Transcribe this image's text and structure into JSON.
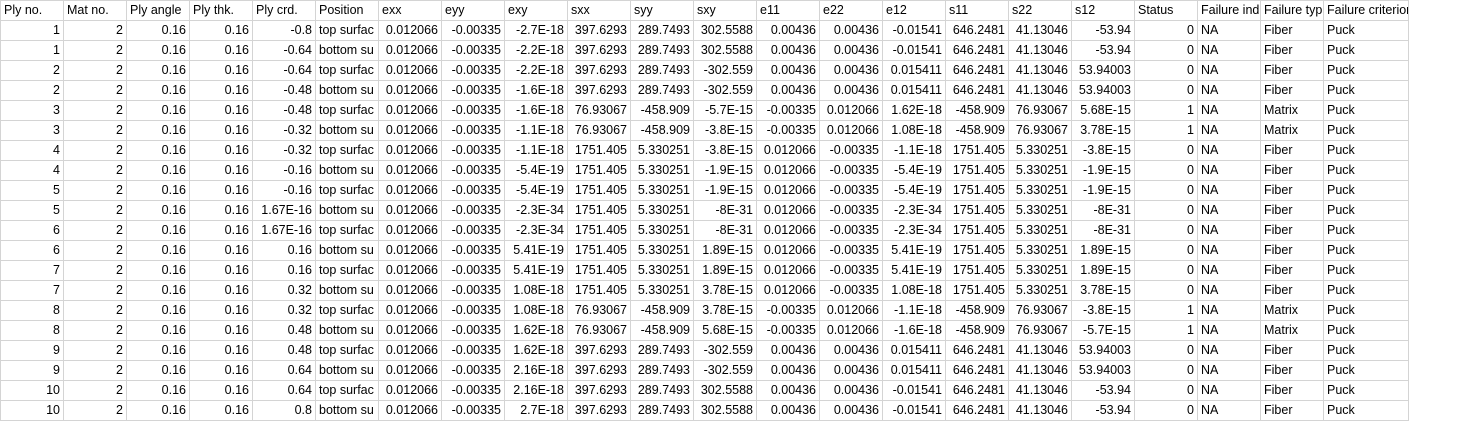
{
  "columns": [
    "Ply no.",
    "Mat no.",
    "Ply angle",
    "Ply thk.",
    "Ply crd.",
    "Position",
    "exx",
    "eyy",
    "exy",
    "sxx",
    "syy",
    "sxy",
    "e11",
    "e22",
    "e12",
    "s11",
    "s22",
    "s12",
    "Status",
    "Failure ind",
    "Failure typ",
    "Failure criterion"
  ],
  "rows": [
    [
      "1",
      "2",
      "0.16",
      "0.16",
      "-0.8",
      "top surfac",
      "0.012066",
      "-0.00335",
      "-2.7E-18",
      "397.6293",
      "289.7493",
      "302.5588",
      "0.00436",
      "0.00436",
      "-0.01541",
      "646.2481",
      "41.13046",
      "-53.94",
      "0",
      "NA",
      "Fiber",
      "Puck"
    ],
    [
      "1",
      "2",
      "0.16",
      "0.16",
      "-0.64",
      "bottom su",
      "0.012066",
      "-0.00335",
      "-2.2E-18",
      "397.6293",
      "289.7493",
      "302.5588",
      "0.00436",
      "0.00436",
      "-0.01541",
      "646.2481",
      "41.13046",
      "-53.94",
      "0",
      "NA",
      "Fiber",
      "Puck"
    ],
    [
      "2",
      "2",
      "0.16",
      "0.16",
      "-0.64",
      "top surfac",
      "0.012066",
      "-0.00335",
      "-2.2E-18",
      "397.6293",
      "289.7493",
      "-302.559",
      "0.00436",
      "0.00436",
      "0.015411",
      "646.2481",
      "41.13046",
      "53.94003",
      "0",
      "NA",
      "Fiber",
      "Puck"
    ],
    [
      "2",
      "2",
      "0.16",
      "0.16",
      "-0.48",
      "bottom su",
      "0.012066",
      "-0.00335",
      "-1.6E-18",
      "397.6293",
      "289.7493",
      "-302.559",
      "0.00436",
      "0.00436",
      "0.015411",
      "646.2481",
      "41.13046",
      "53.94003",
      "0",
      "NA",
      "Fiber",
      "Puck"
    ],
    [
      "3",
      "2",
      "0.16",
      "0.16",
      "-0.48",
      "top surfac",
      "0.012066",
      "-0.00335",
      "-1.6E-18",
      "76.93067",
      "-458.909",
      "-5.7E-15",
      "-0.00335",
      "0.012066",
      "1.62E-18",
      "-458.909",
      "76.93067",
      "5.68E-15",
      "1",
      "NA",
      "Matrix",
      "Puck"
    ],
    [
      "3",
      "2",
      "0.16",
      "0.16",
      "-0.32",
      "bottom su",
      "0.012066",
      "-0.00335",
      "-1.1E-18",
      "76.93067",
      "-458.909",
      "-3.8E-15",
      "-0.00335",
      "0.012066",
      "1.08E-18",
      "-458.909",
      "76.93067",
      "3.78E-15",
      "1",
      "NA",
      "Matrix",
      "Puck"
    ],
    [
      "4",
      "2",
      "0.16",
      "0.16",
      "-0.32",
      "top surfac",
      "0.012066",
      "-0.00335",
      "-1.1E-18",
      "1751.405",
      "5.330251",
      "-3.8E-15",
      "0.012066",
      "-0.00335",
      "-1.1E-18",
      "1751.405",
      "5.330251",
      "-3.8E-15",
      "0",
      "NA",
      "Fiber",
      "Puck"
    ],
    [
      "4",
      "2",
      "0.16",
      "0.16",
      "-0.16",
      "bottom su",
      "0.012066",
      "-0.00335",
      "-5.4E-19",
      "1751.405",
      "5.330251",
      "-1.9E-15",
      "0.012066",
      "-0.00335",
      "-5.4E-19",
      "1751.405",
      "5.330251",
      "-1.9E-15",
      "0",
      "NA",
      "Fiber",
      "Puck"
    ],
    [
      "5",
      "2",
      "0.16",
      "0.16",
      "-0.16",
      "top surfac",
      "0.012066",
      "-0.00335",
      "-5.4E-19",
      "1751.405",
      "5.330251",
      "-1.9E-15",
      "0.012066",
      "-0.00335",
      "-5.4E-19",
      "1751.405",
      "5.330251",
      "-1.9E-15",
      "0",
      "NA",
      "Fiber",
      "Puck"
    ],
    [
      "5",
      "2",
      "0.16",
      "0.16",
      "1.67E-16",
      "bottom su",
      "0.012066",
      "-0.00335",
      "-2.3E-34",
      "1751.405",
      "5.330251",
      "-8E-31",
      "0.012066",
      "-0.00335",
      "-2.3E-34",
      "1751.405",
      "5.330251",
      "-8E-31",
      "0",
      "NA",
      "Fiber",
      "Puck"
    ],
    [
      "6",
      "2",
      "0.16",
      "0.16",
      "1.67E-16",
      "top surfac",
      "0.012066",
      "-0.00335",
      "-2.3E-34",
      "1751.405",
      "5.330251",
      "-8E-31",
      "0.012066",
      "-0.00335",
      "-2.3E-34",
      "1751.405",
      "5.330251",
      "-8E-31",
      "0",
      "NA",
      "Fiber",
      "Puck"
    ],
    [
      "6",
      "2",
      "0.16",
      "0.16",
      "0.16",
      "bottom su",
      "0.012066",
      "-0.00335",
      "5.41E-19",
      "1751.405",
      "5.330251",
      "1.89E-15",
      "0.012066",
      "-0.00335",
      "5.41E-19",
      "1751.405",
      "5.330251",
      "1.89E-15",
      "0",
      "NA",
      "Fiber",
      "Puck"
    ],
    [
      "7",
      "2",
      "0.16",
      "0.16",
      "0.16",
      "top surfac",
      "0.012066",
      "-0.00335",
      "5.41E-19",
      "1751.405",
      "5.330251",
      "1.89E-15",
      "0.012066",
      "-0.00335",
      "5.41E-19",
      "1751.405",
      "5.330251",
      "1.89E-15",
      "0",
      "NA",
      "Fiber",
      "Puck"
    ],
    [
      "7",
      "2",
      "0.16",
      "0.16",
      "0.32",
      "bottom su",
      "0.012066",
      "-0.00335",
      "1.08E-18",
      "1751.405",
      "5.330251",
      "3.78E-15",
      "0.012066",
      "-0.00335",
      "1.08E-18",
      "1751.405",
      "5.330251",
      "3.78E-15",
      "0",
      "NA",
      "Fiber",
      "Puck"
    ],
    [
      "8",
      "2",
      "0.16",
      "0.16",
      "0.32",
      "top surfac",
      "0.012066",
      "-0.00335",
      "1.08E-18",
      "76.93067",
      "-458.909",
      "3.78E-15",
      "-0.00335",
      "0.012066",
      "-1.1E-18",
      "-458.909",
      "76.93067",
      "-3.8E-15",
      "1",
      "NA",
      "Matrix",
      "Puck"
    ],
    [
      "8",
      "2",
      "0.16",
      "0.16",
      "0.48",
      "bottom su",
      "0.012066",
      "-0.00335",
      "1.62E-18",
      "76.93067",
      "-458.909",
      "5.68E-15",
      "-0.00335",
      "0.012066",
      "-1.6E-18",
      "-458.909",
      "76.93067",
      "-5.7E-15",
      "1",
      "NA",
      "Matrix",
      "Puck"
    ],
    [
      "9",
      "2",
      "0.16",
      "0.16",
      "0.48",
      "top surfac",
      "0.012066",
      "-0.00335",
      "1.62E-18",
      "397.6293",
      "289.7493",
      "-302.559",
      "0.00436",
      "0.00436",
      "0.015411",
      "646.2481",
      "41.13046",
      "53.94003",
      "0",
      "NA",
      "Fiber",
      "Puck"
    ],
    [
      "9",
      "2",
      "0.16",
      "0.16",
      "0.64",
      "bottom su",
      "0.012066",
      "-0.00335",
      "2.16E-18",
      "397.6293",
      "289.7493",
      "-302.559",
      "0.00436",
      "0.00436",
      "0.015411",
      "646.2481",
      "41.13046",
      "53.94003",
      "0",
      "NA",
      "Fiber",
      "Puck"
    ],
    [
      "10",
      "2",
      "0.16",
      "0.16",
      "0.64",
      "top surfac",
      "0.012066",
      "-0.00335",
      "2.16E-18",
      "397.6293",
      "289.7493",
      "302.5588",
      "0.00436",
      "0.00436",
      "-0.01541",
      "646.2481",
      "41.13046",
      "-53.94",
      "0",
      "NA",
      "Fiber",
      "Puck"
    ],
    [
      "10",
      "2",
      "0.16",
      "0.16",
      "0.8",
      "bottom su",
      "0.012066",
      "-0.00335",
      "2.7E-18",
      "397.6293",
      "289.7493",
      "302.5588",
      "0.00436",
      "0.00436",
      "-0.01541",
      "646.2481",
      "41.13046",
      "-53.94",
      "0",
      "NA",
      "Fiber",
      "Puck"
    ]
  ]
}
